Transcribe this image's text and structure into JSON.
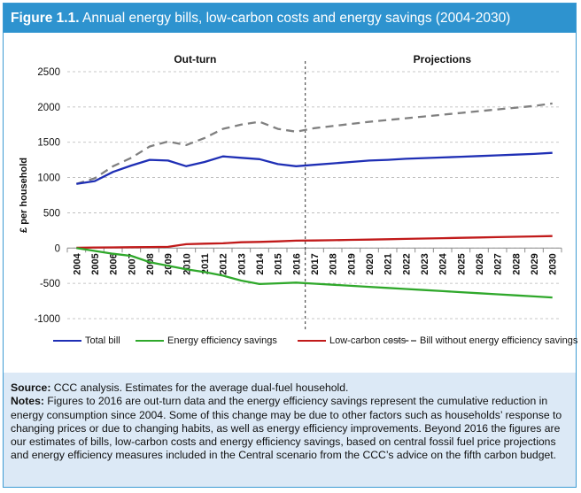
{
  "header": {
    "figure_label": "Figure 1.1.",
    "title": "Annual energy bills, low-carbon costs and energy savings (2004-2030)"
  },
  "chart_data": {
    "type": "line",
    "title": "Annual energy bills, low-carbon costs and energy savings (2004-2030)",
    "ylabel": "£ per household",
    "xlabel": "",
    "ylim": [
      -1000,
      2500
    ],
    "yticks": [
      2500,
      2000,
      1500,
      1000,
      500,
      0,
      -500,
      -1000
    ],
    "grid": true,
    "legend_position": "bottom",
    "section_labels": [
      "Out-turn",
      "Projections"
    ],
    "divider_after": "2016",
    "x": [
      "2004",
      "2005",
      "2006",
      "2007",
      "2008",
      "2009",
      "2010",
      "2011",
      "2012",
      "2013",
      "2014",
      "2015",
      "2016",
      "2017",
      "2018",
      "2019",
      "2020",
      "2021",
      "2022",
      "2023",
      "2024",
      "2025",
      "2026",
      "2027",
      "2028",
      "2029",
      "2030"
    ],
    "series": [
      {
        "name": "Total bill",
        "color": "#1f2fb5",
        "dash": false,
        "values": [
          910,
          950,
          1080,
          1170,
          1250,
          1240,
          1160,
          1220,
          1300,
          1280,
          1260,
          1190,
          1160,
          1180,
          1200,
          1220,
          1240,
          1250,
          1265,
          1275,
          1285,
          1295,
          1305,
          1315,
          1325,
          1335,
          1350
        ]
      },
      {
        "name": "Energy efficiency savings",
        "color": "#2fa82b",
        "dash": false,
        "values": [
          0,
          -40,
          -80,
          -110,
          -200,
          -250,
          -300,
          -340,
          -390,
          -460,
          -510,
          -500,
          -490,
          -505,
          -520,
          -535,
          -550,
          -565,
          -580,
          -595,
          -610,
          -625,
          -640,
          -655,
          -670,
          -685,
          -700
        ]
      },
      {
        "name": "Low-carbon costs",
        "color": "#c11a1a",
        "dash": false,
        "values": [
          5,
          8,
          10,
          12,
          15,
          18,
          55,
          62,
          68,
          82,
          88,
          95,
          105,
          108,
          112,
          116,
          120,
          125,
          130,
          135,
          140,
          145,
          150,
          155,
          160,
          165,
          170
        ]
      },
      {
        "name": "Bill without energy efficiency savings",
        "color": "#808080",
        "dash": true,
        "values": [
          910,
          990,
          1160,
          1280,
          1440,
          1510,
          1460,
          1560,
          1690,
          1750,
          1790,
          1690,
          1650,
          1700,
          1730,
          1760,
          1790,
          1815,
          1840,
          1865,
          1890,
          1915,
          1940,
          1965,
          1990,
          2015,
          2050
        ]
      }
    ]
  },
  "notes": {
    "source_label": "Source:",
    "source_text": " CCC analysis. Estimates for the average dual-fuel household.",
    "notes_label": "Notes:",
    "notes_text": " Figures to 2016 are out-turn data and the energy efficiency savings represent the cumulative reduction in energy consumption since 2004. Some of this change may be due to other factors such as households’ response to changing prices or due to changing habits, as well as energy efficiency improvements. Beyond 2016 the figures are our estimates of bills, low-carbon costs and energy efficiency savings, based on central fossil fuel price projections and energy efficiency measures included in the Central scenario from the CCC’s advice on the fifth carbon budget."
  }
}
